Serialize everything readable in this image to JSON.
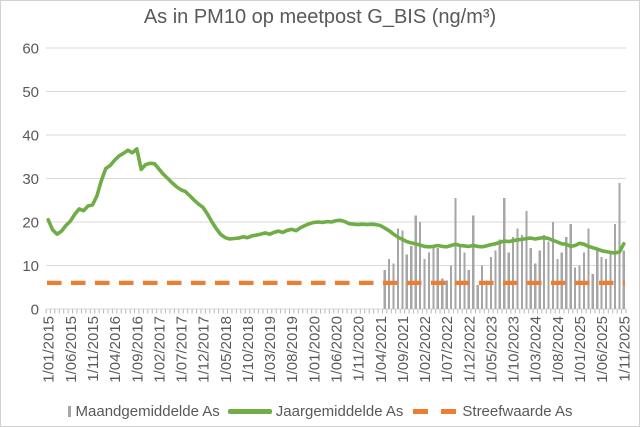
{
  "chart_data": {
    "type": "combo",
    "title": "As in PM10 op meetpost G_BIS (ng/m³)",
    "text_color": "#595959",
    "y_axis": {
      "min": 0,
      "max": 60,
      "step": 10,
      "ticks": [
        "0",
        "10",
        "20",
        "30",
        "40",
        "50",
        "60"
      ],
      "gridline_color": "#d9d9d9",
      "label_color": "#595959",
      "grid": true
    },
    "x_axis": {
      "total_months": 131,
      "first_month": "1/01/2015",
      "last_month": "1/11/2025",
      "months_between_labels": 5,
      "tick_labels": [
        "1/01/2015",
        "1/06/2015",
        "1/11/2015",
        "1/04/2016",
        "1/09/2016",
        "1/02/2017",
        "1/07/2017",
        "1/12/2017",
        "1/05/2018",
        "1/10/2018",
        "1/03/2019",
        "1/08/2019",
        "1/01/2020",
        "1/06/2020",
        "1/11/2020",
        "1/04/2021",
        "1/09/2021",
        "1/02/2022",
        "1/07/2022",
        "1/12/2022",
        "1/05/2023",
        "1/10/2023",
        "1/03/2024",
        "1/08/2024",
        "1/01/2025",
        "1/06/2025",
        "1/11/2025"
      ],
      "tick_color": "#b9b9b9",
      "label_color": "#595959"
    },
    "legend_position": "bottom",
    "series": [
      {
        "name": "Maandgemiddelde As",
        "type": "bar",
        "color": "#a6a6a6",
        "start_index": 76,
        "start_month": "1/05/2021",
        "values": [
          9.0,
          11.5,
          10.5,
          18.5,
          18.0,
          12.5,
          14.5,
          21.5,
          20.0,
          11.5,
          13.0,
          14.0,
          14.0,
          7.0,
          6.5,
          10.0,
          25.5,
          15.0,
          13.0,
          9.0,
          21.5,
          5.5,
          10.0,
          6.5,
          12.0,
          13.5,
          16.0,
          25.5,
          13.0,
          16.5,
          18.5,
          17.0,
          22.5,
          14.0,
          10.5,
          13.5,
          17.0,
          15.5,
          20.0,
          11.5,
          13.0,
          16.5,
          19.5,
          9.5,
          10.0,
          13.0,
          18.5,
          8.0,
          14.0,
          12.0,
          11.5,
          13.0,
          19.5,
          29.0,
          13.5
        ]
      },
      {
        "name": "Jaargemiddelde As",
        "type": "line",
        "color": "#70ad47",
        "start_index": 0,
        "values": [
          20.5,
          18.2,
          17.2,
          17.9,
          19.2,
          20.2,
          21.8,
          23.0,
          22.6,
          23.7,
          23.9,
          26.0,
          29.5,
          32.3,
          33.0,
          34.2,
          35.2,
          35.8,
          36.5,
          35.9,
          36.8,
          32.1,
          33.2,
          33.5,
          33.4,
          32.2,
          31.0,
          30.0,
          29.0,
          28.1,
          27.4,
          27.0,
          26.0,
          25.0,
          24.1,
          23.3,
          21.8,
          20.0,
          18.4,
          17.1,
          16.4,
          16.1,
          16.2,
          16.3,
          16.6,
          16.4,
          16.8,
          17.0,
          17.2,
          17.5,
          17.2,
          17.6,
          17.9,
          17.6,
          18.1,
          18.3,
          18.0,
          18.7,
          19.2,
          19.6,
          19.9,
          20.0,
          19.9,
          20.1,
          20.0,
          20.3,
          20.4,
          20.1,
          19.6,
          19.5,
          19.4,
          19.5,
          19.4,
          19.5,
          19.4,
          19.2,
          18.6,
          18.0,
          17.2,
          16.5,
          16.0,
          15.5,
          15.2,
          15.0,
          14.7,
          14.4,
          14.3,
          14.4,
          14.6,
          14.4,
          14.3,
          14.6,
          14.9,
          14.6,
          14.5,
          14.4,
          14.6,
          14.4,
          14.3,
          14.5,
          14.8,
          15.0,
          15.3,
          15.6,
          15.5,
          15.7,
          15.9,
          16.0,
          16.2,
          16.3,
          16.1,
          16.3,
          16.4,
          16.2,
          15.8,
          15.4,
          15.0,
          14.9,
          14.4,
          14.6,
          15.1,
          14.9,
          14.4,
          14.1,
          13.8,
          13.4,
          13.2,
          13.0,
          12.9,
          13.1,
          15.0
        ]
      },
      {
        "name": "Streefwaarde As",
        "type": "dashed-line",
        "color": "#ed7d31",
        "value": 6
      }
    ]
  }
}
